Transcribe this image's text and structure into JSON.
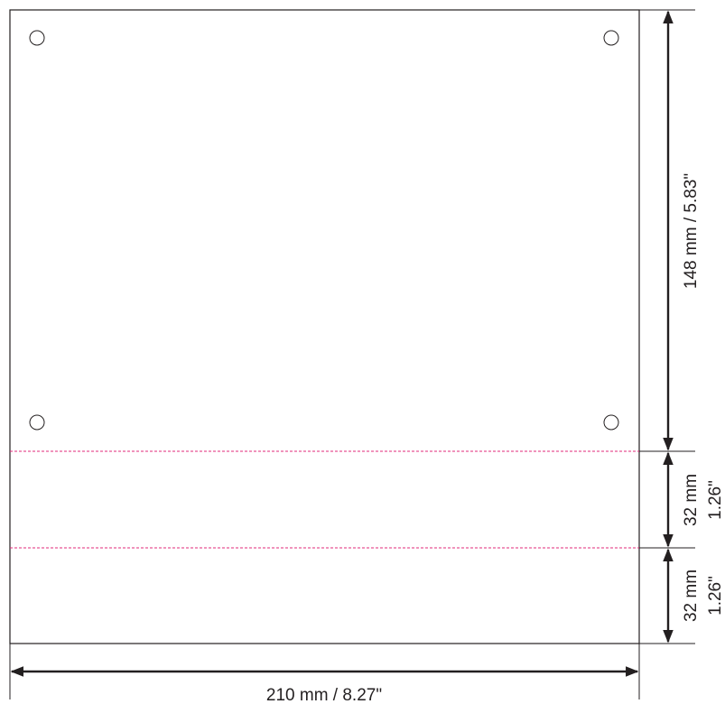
{
  "dimensions": {
    "width_label": "210 mm / 8.27\"",
    "height_label": "148 mm / 5.83\"",
    "strip1_mm": "32 mm",
    "strip1_in": "1.26\"",
    "strip2_mm": "32 mm",
    "strip2_in": "1.26\""
  },
  "colors": {
    "line": "#231f20",
    "fold_line": "#e0297a"
  }
}
